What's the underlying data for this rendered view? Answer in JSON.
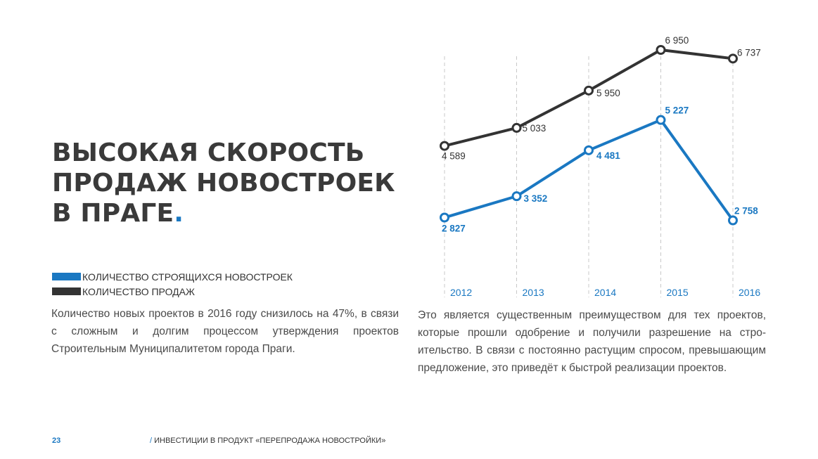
{
  "title": {
    "lines": [
      "ВЫСОКАЯ СКОРОСТЬ",
      "ПРОДАЖ НОВОСТРОЕК",
      "В ПРАГЕ"
    ],
    "accent": "."
  },
  "colors": {
    "accent": "#1a78c2",
    "dark": "#333333",
    "grid": "#c8c8c8"
  },
  "legend": [
    {
      "label": "КОЛИЧЕСТВО СТРОЯЩИХСЯ НОВОСТРОЕК",
      "color": "#1a78c2"
    },
    {
      "label": "КОЛИЧЕСТВО ПРОДАЖ",
      "color": "#333333"
    }
  ],
  "paragraph_left": "Количество новых проектов в 2016 году снизилось на 47%, в связи с сложным и долгим процессом утверждения проектов Строительным Муниципалитетом города Праги.",
  "paragraph_right": "Это является существенным преимуществом для тех проектов, которые прошли одобрение и получили разрешение на стро­ительство. В связи с постоянно растущим спросом, превышаю­щим предложение, это приведёт к быстрой реализации проек­тов.",
  "footer": {
    "page_number": "23",
    "slash": "/",
    "section": "ИНВЕСТИЦИИ В ПРОДУКТ «ПЕРЕПРОДАЖА НОВОСТРОЙКИ»"
  },
  "chart_data": {
    "type": "line",
    "categories": [
      "2012",
      "2013",
      "2014",
      "2015",
      "2016"
    ],
    "series": [
      {
        "name": "КОЛИЧЕСТВО ПРОДАЖ",
        "color": "#333333",
        "values": [
          4589,
          5033,
          5950,
          6950,
          6737
        ],
        "labels": [
          "4 589",
          "5 033",
          "5 950",
          "6 950",
          "6 737"
        ]
      },
      {
        "name": "КОЛИЧЕСТВО СТРОЯЩИХСЯ НОВОСТРОЕК",
        "color": "#1a78c2",
        "values": [
          2827,
          3352,
          4481,
          5227,
          2758
        ],
        "labels": [
          "2 827",
          "3 352",
          "4 481",
          "5 227",
          "2 758"
        ]
      }
    ],
    "grid": "vertical dashed",
    "legend_position": "left",
    "xlabel": "",
    "ylabel": ""
  }
}
